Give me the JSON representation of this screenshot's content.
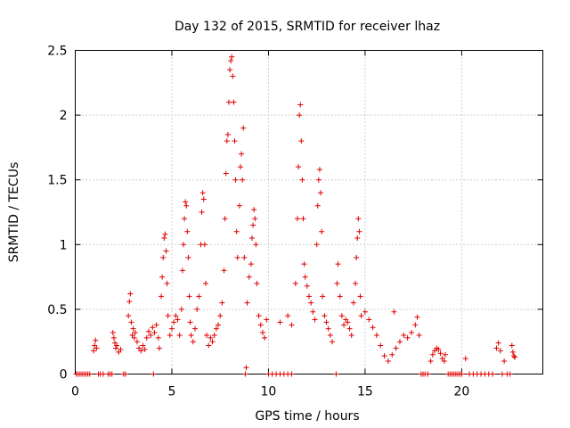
{
  "chart_data": {
    "type": "scatter",
    "title": "Day 132 of 2015, SRMTID for receiver lhaz",
    "xlabel": "GPS time / hours",
    "ylabel": "SRMTID / TECUs",
    "xlim": [
      0,
      24.2
    ],
    "ylim": [
      0,
      2.5
    ],
    "x_ticks": [
      0,
      5,
      10,
      15,
      20
    ],
    "y_ticks": [
      0,
      0.5,
      1,
      1.5,
      2,
      2.5
    ],
    "x_tick_labels": [
      "0",
      "5",
      "10",
      "15",
      "20"
    ],
    "y_tick_labels": [
      "0",
      "0.5",
      "1",
      "1.5",
      "2",
      "2.5"
    ],
    "grid": true,
    "marker": "+",
    "color": "#e00000",
    "series": [
      {
        "name": "SRMTID",
        "points": [
          [
            0.05,
            0
          ],
          [
            0.15,
            0
          ],
          [
            0.25,
            0
          ],
          [
            0.35,
            0
          ],
          [
            0.45,
            0
          ],
          [
            0.55,
            0
          ],
          [
            0.65,
            0
          ],
          [
            0.75,
            0
          ],
          [
            0.95,
            0.18
          ],
          [
            1.0,
            0.22
          ],
          [
            1.05,
            0.26
          ],
          [
            1.1,
            0.2
          ],
          [
            1.2,
            0
          ],
          [
            1.3,
            0
          ],
          [
            1.45,
            0
          ],
          [
            1.7,
            0
          ],
          [
            1.8,
            0
          ],
          [
            1.9,
            0
          ],
          [
            1.95,
            0.32
          ],
          [
            2.0,
            0.28
          ],
          [
            2.05,
            0.24
          ],
          [
            2.1,
            0.2
          ],
          [
            2.15,
            0.22
          ],
          [
            2.25,
            0.17
          ],
          [
            2.35,
            0.19
          ],
          [
            2.5,
            0
          ],
          [
            2.6,
            0
          ],
          [
            2.75,
            0.45
          ],
          [
            2.8,
            0.56
          ],
          [
            2.85,
            0.62
          ],
          [
            2.9,
            0.4
          ],
          [
            2.95,
            0.3
          ],
          [
            3.0,
            0.35
          ],
          [
            3.05,
            0.28
          ],
          [
            3.1,
            0.32
          ],
          [
            3.2,
            0.25
          ],
          [
            3.3,
            0.2
          ],
          [
            3.4,
            0.18
          ],
          [
            3.5,
            0.22
          ],
          [
            3.6,
            0.19
          ],
          [
            3.7,
            0.28
          ],
          [
            3.8,
            0.33
          ],
          [
            3.9,
            0.3
          ],
          [
            4.0,
            0.36
          ],
          [
            4.05,
            0
          ],
          [
            4.1,
            0.32
          ],
          [
            4.2,
            0.38
          ],
          [
            4.3,
            0.28
          ],
          [
            4.35,
            0.2
          ],
          [
            4.45,
            0.6
          ],
          [
            4.5,
            0.75
          ],
          [
            4.55,
            0.9
          ],
          [
            4.6,
            1.05
          ],
          [
            4.65,
            1.08
          ],
          [
            4.7,
            0.95
          ],
          [
            4.75,
            0.7
          ],
          [
            4.8,
            0.45
          ],
          [
            4.9,
            0.3
          ],
          [
            5.0,
            0.35
          ],
          [
            5.1,
            0.4
          ],
          [
            5.2,
            0.45
          ],
          [
            5.3,
            0.42
          ],
          [
            5.4,
            0.3
          ],
          [
            5.5,
            0.5
          ],
          [
            5.55,
            0.8
          ],
          [
            5.6,
            1.0
          ],
          [
            5.65,
            1.2
          ],
          [
            5.7,
            1.33
          ],
          [
            5.75,
            1.3
          ],
          [
            5.8,
            1.1
          ],
          [
            5.85,
            0.9
          ],
          [
            5.9,
            0.6
          ],
          [
            5.95,
            0.4
          ],
          [
            6.0,
            0.3
          ],
          [
            6.1,
            0.25
          ],
          [
            6.2,
            0.35
          ],
          [
            6.3,
            0.5
          ],
          [
            6.4,
            0.6
          ],
          [
            6.5,
            1.0
          ],
          [
            6.55,
            1.25
          ],
          [
            6.6,
            1.4
          ],
          [
            6.65,
            1.35
          ],
          [
            6.7,
            1.0
          ],
          [
            6.75,
            0.7
          ],
          [
            6.8,
            0.3
          ],
          [
            6.9,
            0.22
          ],
          [
            7.0,
            0.28
          ],
          [
            7.1,
            0.25
          ],
          [
            7.2,
            0.3
          ],
          [
            7.3,
            0.35
          ],
          [
            7.4,
            0.38
          ],
          [
            7.5,
            0.45
          ],
          [
            7.6,
            0.55
          ],
          [
            7.7,
            0.8
          ],
          [
            7.75,
            1.2
          ],
          [
            7.8,
            1.55
          ],
          [
            7.85,
            1.8
          ],
          [
            7.9,
            1.85
          ],
          [
            7.95,
            2.1
          ],
          [
            8.0,
            2.35
          ],
          [
            8.05,
            2.42
          ],
          [
            8.1,
            2.45
          ],
          [
            8.15,
            2.3
          ],
          [
            8.2,
            2.1
          ],
          [
            8.25,
            1.8
          ],
          [
            8.3,
            1.5
          ],
          [
            8.35,
            1.1
          ],
          [
            8.4,
            0.9
          ],
          [
            8.5,
            1.3
          ],
          [
            8.55,
            1.6
          ],
          [
            8.6,
            1.7
          ],
          [
            8.65,
            1.5
          ],
          [
            8.7,
            1.9
          ],
          [
            8.75,
            0.9
          ],
          [
            8.8,
            0
          ],
          [
            8.85,
            0.05
          ],
          [
            8.9,
            0.55
          ],
          [
            9.0,
            0.75
          ],
          [
            9.1,
            0.85
          ],
          [
            9.15,
            1.05
          ],
          [
            9.2,
            1.15
          ],
          [
            9.25,
            1.27
          ],
          [
            9.3,
            1.2
          ],
          [
            9.35,
            1.0
          ],
          [
            9.4,
            0.7
          ],
          [
            9.5,
            0.45
          ],
          [
            9.6,
            0.38
          ],
          [
            9.7,
            0.32
          ],
          [
            9.8,
            0.28
          ],
          [
            9.9,
            0.42
          ],
          [
            10.0,
            0
          ],
          [
            10.2,
            0
          ],
          [
            10.4,
            0
          ],
          [
            10.6,
            0
          ],
          [
            10.8,
            0
          ],
          [
            11.0,
            0
          ],
          [
            11.2,
            0
          ],
          [
            10.6,
            0.4
          ],
          [
            11.0,
            0.45
          ],
          [
            11.2,
            0.38
          ],
          [
            11.4,
            0.7
          ],
          [
            11.5,
            1.2
          ],
          [
            11.55,
            1.6
          ],
          [
            11.6,
            2.0
          ],
          [
            11.65,
            2.08
          ],
          [
            11.7,
            1.8
          ],
          [
            11.75,
            1.5
          ],
          [
            11.8,
            1.2
          ],
          [
            11.85,
            0.85
          ],
          [
            11.9,
            0.75
          ],
          [
            12.0,
            0.68
          ],
          [
            12.1,
            0.6
          ],
          [
            12.2,
            0.55
          ],
          [
            12.3,
            0.48
          ],
          [
            12.4,
            0.42
          ],
          [
            12.5,
            1.0
          ],
          [
            12.55,
            1.3
          ],
          [
            12.6,
            1.5
          ],
          [
            12.65,
            1.58
          ],
          [
            12.7,
            1.4
          ],
          [
            12.75,
            1.1
          ],
          [
            12.8,
            0.6
          ],
          [
            12.9,
            0.45
          ],
          [
            13.0,
            0.4
          ],
          [
            13.1,
            0.35
          ],
          [
            13.2,
            0.3
          ],
          [
            13.3,
            0.25
          ],
          [
            13.5,
            0
          ],
          [
            13.55,
            0.7
          ],
          [
            13.6,
            0.85
          ],
          [
            13.7,
            0.6
          ],
          [
            13.8,
            0.45
          ],
          [
            13.9,
            0.38
          ],
          [
            14.0,
            0.42
          ],
          [
            14.1,
            0.4
          ],
          [
            14.2,
            0.35
          ],
          [
            14.3,
            0.3
          ],
          [
            14.4,
            0.55
          ],
          [
            14.5,
            0.7
          ],
          [
            14.55,
            0.9
          ],
          [
            14.6,
            1.05
          ],
          [
            14.65,
            1.2
          ],
          [
            14.7,
            1.1
          ],
          [
            14.75,
            0.6
          ],
          [
            14.8,
            0.45
          ],
          [
            15.0,
            0.48
          ],
          [
            15.2,
            0.42
          ],
          [
            15.4,
            0.36
          ],
          [
            15.6,
            0.3
          ],
          [
            15.8,
            0.22
          ],
          [
            16.0,
            0.14
          ],
          [
            16.2,
            0.1
          ],
          [
            16.4,
            0.15
          ],
          [
            16.5,
            0.48
          ],
          [
            16.6,
            0.2
          ],
          [
            16.8,
            0.25
          ],
          [
            17.0,
            0.3
          ],
          [
            17.2,
            0.28
          ],
          [
            17.4,
            0.32
          ],
          [
            17.6,
            0.38
          ],
          [
            17.7,
            0.44
          ],
          [
            17.8,
            0.3
          ],
          [
            17.9,
            0
          ],
          [
            18.0,
            0
          ],
          [
            18.1,
            0
          ],
          [
            18.25,
            0
          ],
          [
            18.4,
            0.1
          ],
          [
            18.5,
            0.15
          ],
          [
            18.6,
            0.18
          ],
          [
            18.7,
            0.2
          ],
          [
            18.8,
            0.19
          ],
          [
            18.9,
            0.16
          ],
          [
            19.0,
            0.12
          ],
          [
            19.1,
            0.1
          ],
          [
            19.15,
            0.15
          ],
          [
            19.3,
            0
          ],
          [
            19.4,
            0
          ],
          [
            19.5,
            0
          ],
          [
            19.6,
            0
          ],
          [
            19.7,
            0
          ],
          [
            19.8,
            0
          ],
          [
            19.9,
            0
          ],
          [
            20.0,
            0
          ],
          [
            20.2,
            0.12
          ],
          [
            20.4,
            0
          ],
          [
            20.6,
            0
          ],
          [
            20.8,
            0
          ],
          [
            21.0,
            0
          ],
          [
            21.2,
            0
          ],
          [
            21.4,
            0
          ],
          [
            21.6,
            0
          ],
          [
            21.8,
            0.2
          ],
          [
            21.9,
            0.24
          ],
          [
            22.0,
            0.18
          ],
          [
            22.1,
            0
          ],
          [
            22.2,
            0.1
          ],
          [
            22.35,
            0
          ],
          [
            22.5,
            0
          ],
          [
            22.6,
            0.22
          ],
          [
            22.65,
            0.17
          ],
          [
            22.7,
            0.14
          ],
          [
            22.75,
            0.13
          ]
        ]
      }
    ]
  }
}
